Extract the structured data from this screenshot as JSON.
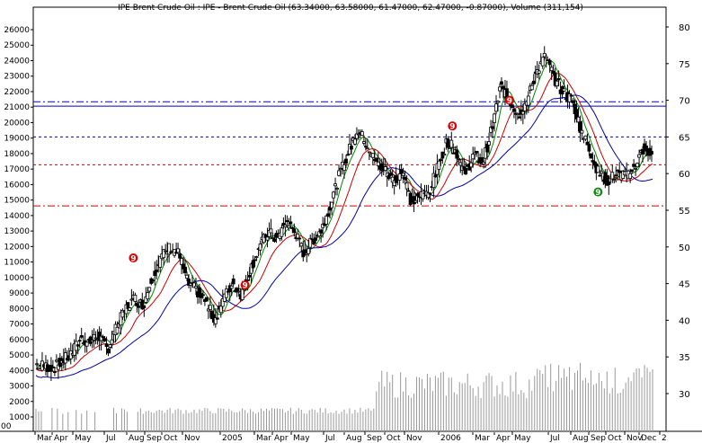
{
  "chart_data": {
    "type": "candlestick",
    "title": "IPE Brent Crude Oil : IPE - Brent Crude Oil (63.34000, 63.58000, 61.47000, 62.47000, -0.87000), Volume (311,154)",
    "corner_label": "00",
    "volume_axis": {
      "min": 0,
      "max": 26000,
      "ticks": [
        1000,
        2000,
        3000,
        4000,
        5000,
        6000,
        7000,
        8000,
        9000,
        10000,
        11000,
        12000,
        13000,
        14000,
        15000,
        16000,
        17000,
        18000,
        19000,
        20000,
        21000,
        22000,
        23000,
        24000,
        25000,
        26000
      ]
    },
    "price_axis": {
      "min": 25.5,
      "max": 82,
      "ticks": [
        30,
        35,
        40,
        45,
        50,
        55,
        60,
        65,
        70,
        75,
        80
      ]
    },
    "x_labels": [
      "Mar",
      "Apr",
      "May",
      "Jul",
      "Aug",
      "Sep",
      "Oct",
      "Nov",
      "2005",
      "Mar",
      "Apr",
      "May",
      "Jul",
      "Aug",
      "Sep",
      "Oct",
      "Nov",
      "2006",
      "Mar",
      "Apr",
      "May",
      "Jul",
      "Aug",
      "Sep",
      "Oct",
      "Nov",
      "Dec",
      "2"
    ],
    "horizontal_levels": [
      {
        "price": 69.2,
        "style": "solid",
        "color": "#0000cc"
      },
      {
        "price": 69.8,
        "style": "dashdot",
        "color": "#0000cc"
      },
      {
        "price": 65.0,
        "style": "dashed",
        "color": "#0000cc"
      },
      {
        "price": 61.2,
        "style": "dashed",
        "color": "#cc0000"
      },
      {
        "price": 55.6,
        "style": "dashdot",
        "color": "#cc0000"
      }
    ],
    "markers": [
      {
        "label": "9",
        "x_index": 109,
        "price": 48.5,
        "color": "#dd0000"
      },
      {
        "label": "9",
        "x_index": 234,
        "price": 44.8,
        "color": "#dd0000"
      },
      {
        "label": "9",
        "x_index": 466,
        "price": 66.5,
        "color": "#dd0000"
      },
      {
        "label": "9",
        "x_index": 530,
        "price": 70.0,
        "color": "#dd0000"
      },
      {
        "label": "9",
        "x_index": 629,
        "price": 57.5,
        "color": "#118811"
      }
    ],
    "close_path": [
      [
        0,
        34.0
      ],
      [
        20,
        33.5
      ],
      [
        40,
        35.5
      ],
      [
        50,
        37.5
      ],
      [
        60,
        37.0
      ],
      [
        70,
        38.0
      ],
      [
        80,
        36.0
      ],
      [
        90,
        39.0
      ],
      [
        100,
        41.5
      ],
      [
        110,
        43.0
      ],
      [
        120,
        42.0
      ],
      [
        130,
        46.0
      ],
      [
        140,
        48.5
      ],
      [
        150,
        50.0
      ],
      [
        160,
        49.0
      ],
      [
        170,
        45.0
      ],
      [
        180,
        44.0
      ],
      [
        190,
        42.5
      ],
      [
        200,
        40.0
      ],
      [
        210,
        43.0
      ],
      [
        220,
        45.0
      ],
      [
        230,
        43.5
      ],
      [
        240,
        47.0
      ],
      [
        250,
        50.0
      ],
      [
        260,
        52.0
      ],
      [
        270,
        51.0
      ],
      [
        280,
        53.5
      ],
      [
        290,
        52.0
      ],
      [
        300,
        49.0
      ],
      [
        310,
        51.0
      ],
      [
        320,
        52.5
      ],
      [
        330,
        56.0
      ],
      [
        340,
        60.0
      ],
      [
        350,
        63.0
      ],
      [
        360,
        66.0
      ],
      [
        370,
        64.0
      ],
      [
        380,
        61.5
      ],
      [
        390,
        60.5
      ],
      [
        400,
        59.0
      ],
      [
        410,
        60.5
      ],
      [
        420,
        56.0
      ],
      [
        430,
        57.0
      ],
      [
        440,
        57.5
      ],
      [
        450,
        61.0
      ],
      [
        460,
        64.5
      ],
      [
        470,
        63.0
      ],
      [
        480,
        60.0
      ],
      [
        490,
        62.5
      ],
      [
        500,
        61.5
      ],
      [
        510,
        66.0
      ],
      [
        520,
        72.0
      ],
      [
        530,
        70.0
      ],
      [
        540,
        68.0
      ],
      [
        550,
        70.0
      ],
      [
        560,
        74.0
      ],
      [
        570,
        76.0
      ],
      [
        580,
        73.0
      ],
      [
        590,
        71.0
      ],
      [
        600,
        70.0
      ],
      [
        610,
        66.0
      ],
      [
        620,
        63.0
      ],
      [
        630,
        60.0
      ],
      [
        640,
        59.0
      ],
      [
        650,
        60.0
      ],
      [
        660,
        59.5
      ],
      [
        670,
        61.0
      ],
      [
        680,
        63.5
      ],
      [
        690,
        62.5
      ]
    ],
    "moving_averages": [
      {
        "color": "#008800",
        "lag": 6
      },
      {
        "color": "#cc0000",
        "lag": 14
      },
      {
        "color": "#0000aa",
        "lag": 30
      }
    ]
  }
}
